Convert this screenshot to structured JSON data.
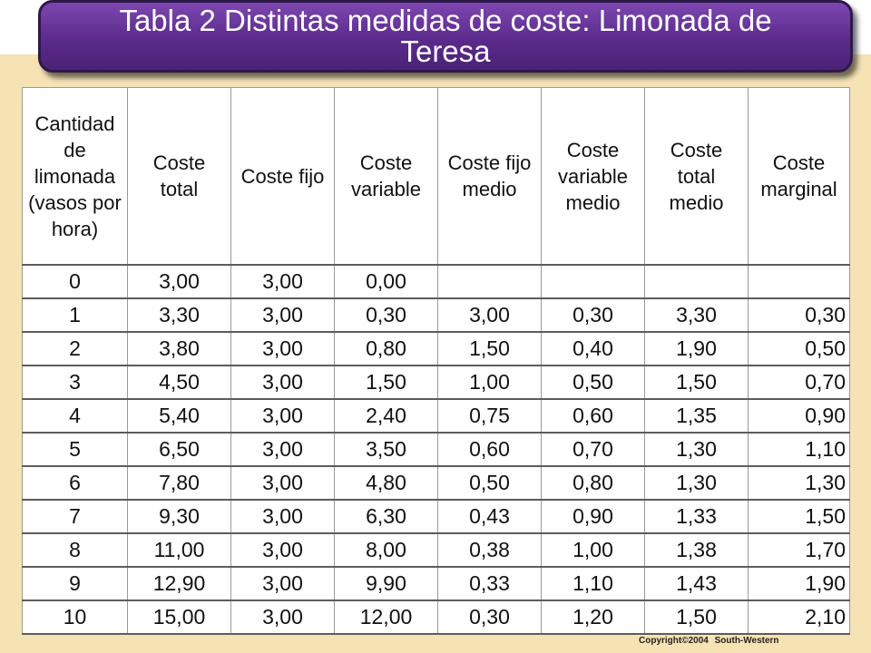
{
  "title": "Tabla 2 Distintas medidas de coste: Limonada de Teresa",
  "table": {
    "headers": [
      "Cantidad de limonada (vasos por hora)",
      "Coste total",
      "Coste fijo",
      "Coste variable",
      "Coste fijo medio",
      "Coste variable medio",
      "Coste total medio",
      "Coste marginal"
    ],
    "rows": [
      [
        "0",
        "3,00",
        "3,00",
        "0,00",
        "",
        "",
        "",
        ""
      ],
      [
        "1",
        "3,30",
        "3,00",
        "0,30",
        "3,00",
        "0,30",
        "3,30",
        "0,30"
      ],
      [
        "2",
        "3,80",
        "3,00",
        "0,80",
        "1,50",
        "0,40",
        "1,90",
        "0,50"
      ],
      [
        "3",
        "4,50",
        "3,00",
        "1,50",
        "1,00",
        "0,50",
        "1,50",
        "0,70"
      ],
      [
        "4",
        "5,40",
        "3,00",
        "2,40",
        "0,75",
        "0,60",
        "1,35",
        "0,90"
      ],
      [
        "5",
        "6,50",
        "3,00",
        "3,50",
        "0,60",
        "0,70",
        "1,30",
        "1,10"
      ],
      [
        "6",
        "7,80",
        "3,00",
        "4,80",
        "0,50",
        "0,80",
        "1,30",
        "1,30"
      ],
      [
        "7",
        "9,30",
        "3,00",
        "6,30",
        "0,43",
        "0,90",
        "1,33",
        "1,50"
      ],
      [
        "8",
        "11,00",
        "3,00",
        "8,00",
        "0,38",
        "1,00",
        "1,38",
        "1,70"
      ],
      [
        "9",
        "12,90",
        "3,00",
        "9,90",
        "0,33",
        "1,10",
        "1,43",
        "1,90"
      ],
      [
        "10",
        "15,00",
        "3,00",
        "12,00",
        "0,30",
        "1,20",
        "1,50",
        "2,10"
      ]
    ]
  },
  "copyright": "Copyright©2004 South-Western",
  "colors": {
    "title_bar": "#5b2b8c",
    "background_band": "#f6e3b4"
  }
}
